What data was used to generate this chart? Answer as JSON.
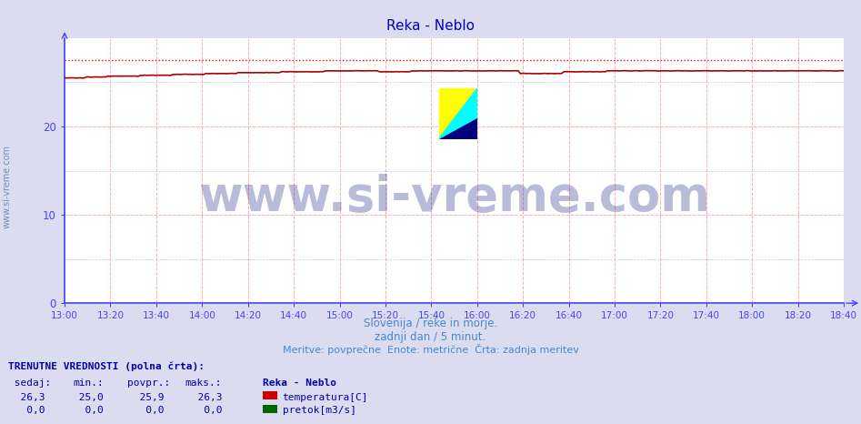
{
  "title": "Reka - Neblo",
  "xlabel_lines": [
    "Slovenija / reke in morje.",
    "zadnji dan / 5 minut.",
    "Meritve: povprečne  Enote: metrične  Črta: zadnja meritev"
  ],
  "ylim": [
    0,
    30
  ],
  "yticks": [
    0,
    10,
    20
  ],
  "xtick_labels": [
    "13:00",
    "13:20",
    "13:40",
    "14:00",
    "14:20",
    "14:40",
    "15:00",
    "15:20",
    "15:40",
    "16:00",
    "16:20",
    "16:40",
    "17:00",
    "17:20",
    "17:40",
    "18:00",
    "18:20",
    "18:40"
  ],
  "bg_color": "#dcdcf0",
  "plot_bg_color": "#ffffff",
  "grid_color_v": "#ffaaaa",
  "grid_color_h": "#ccccdd",
  "spine_color": "#4444ff",
  "title_color": "#0000cc",
  "tick_color": "#4444cc",
  "label_color": "#4488cc",
  "temp_line_color": "#aa0000",
  "temp_max_line_color": "#ff0000",
  "watermark_color": "#1a237e",
  "watermark_alpha": 0.3,
  "watermark_fontsize": 38,
  "sidebar_color": "#6688aa",
  "sidebar_fontsize": 7,
  "legend_temp": "temperatura[C]",
  "legend_flow": "pretok[m3/s]",
  "temp_dotted_value": 27.5,
  "n_points": 360
}
